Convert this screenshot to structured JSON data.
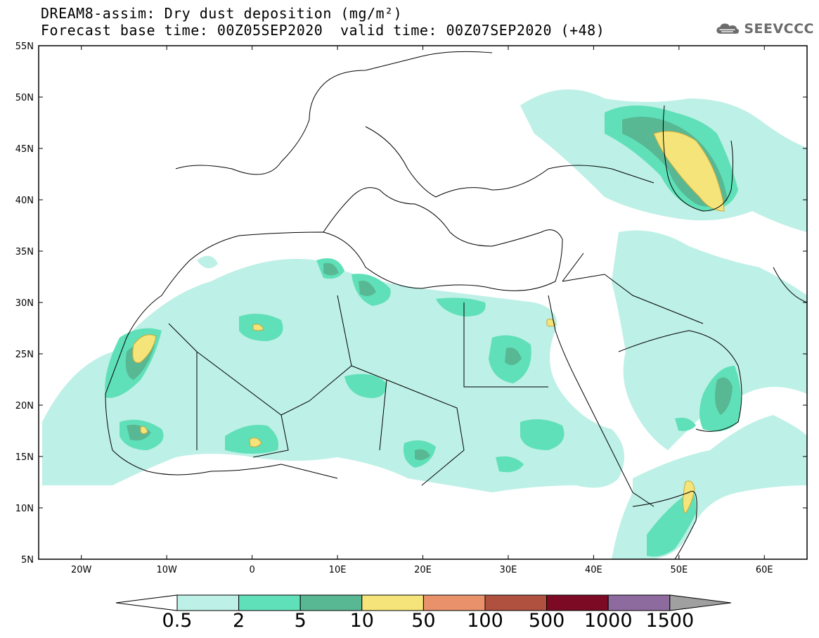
{
  "title": {
    "line1": "DREAM8-assim: Dry dust deposition (mg/m²)",
    "line2": "Forecast base time: 00Z05SEP2020",
    "valid": "valid time: 00Z07SEP2020 (+48)"
  },
  "logo": {
    "text": "SEEVCCC",
    "icon": "cloud-icon"
  },
  "map": {
    "lat_labels": [
      "55N",
      "50N",
      "45N",
      "40N",
      "35N",
      "30N",
      "25N",
      "20N",
      "15N",
      "10N",
      "5N"
    ],
    "lon_labels": [
      "20W",
      "10W",
      "0",
      "10E",
      "20E",
      "30E",
      "40E",
      "50E",
      "60E"
    ],
    "lat_range": [
      5,
      55
    ],
    "lon_range": [
      -25,
      65
    ]
  },
  "colorbar": {
    "labels": [
      "0.5",
      "2",
      "5",
      "10",
      "50",
      "100",
      "500",
      "1000",
      "1500"
    ],
    "colors": [
      "#ffffff",
      "#bdf0e6",
      "#5fe0b8",
      "#59b894",
      "#f5e47a",
      "#e8916a",
      "#b0503f",
      "#7c0a24",
      "#8e6b9e",
      "#a0a0a0"
    ]
  },
  "legend_colors": {
    "level_0_5": "#bdf0e6",
    "level_2": "#5fe0b8",
    "level_5": "#59b894",
    "level_10": "#f5e47a"
  }
}
